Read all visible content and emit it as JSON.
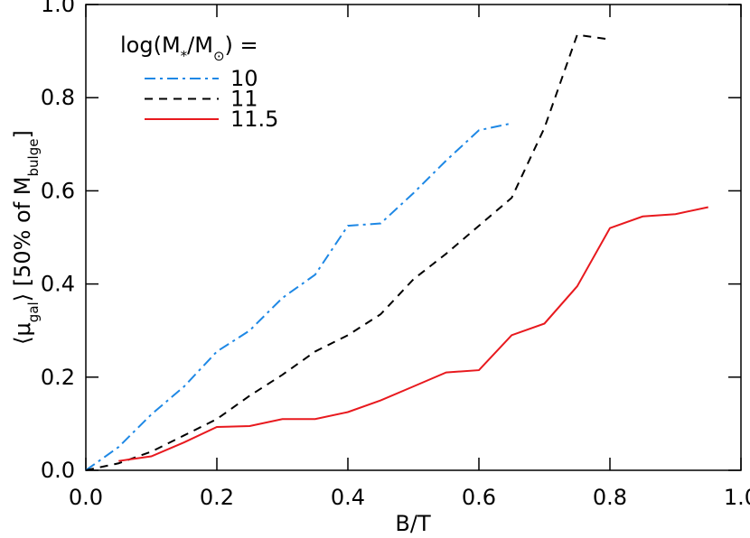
{
  "chart_data": {
    "type": "line",
    "xlabel": "B/T",
    "ylabel": [
      "⟨μ",
      "gal",
      "⟩ [50% of M",
      "bulge",
      "]"
    ],
    "legend_title": [
      "log(M",
      "*",
      "/M",
      "⊙",
      ") ="
    ],
    "legend": "upper left",
    "xlim": [
      0,
      1.0
    ],
    "ylim": [
      0,
      1.0
    ],
    "xticks": [
      {
        "value": 0,
        "label": "0.0"
      },
      {
        "value": 0.2,
        "label": "0.2"
      },
      {
        "value": 0.4,
        "label": "0.4"
      },
      {
        "value": 0.6,
        "label": "0.6"
      },
      {
        "value": 0.8,
        "label": "0.8"
      },
      {
        "value": 1.0,
        "label": "1.0"
      }
    ],
    "yticks": [
      {
        "value": 0,
        "label": "0.0"
      },
      {
        "value": 0.2,
        "label": "0.2"
      },
      {
        "value": 0.4,
        "label": "0.4"
      },
      {
        "value": 0.6,
        "label": "0.6"
      },
      {
        "value": 0.8,
        "label": "0.8"
      },
      {
        "value": 1.0,
        "label": "1.0"
      }
    ],
    "series": [
      {
        "name": "10",
        "color": "#1e88e5",
        "dash": "dashdot",
        "x": [
          0,
          0.05,
          0.1,
          0.15,
          0.2,
          0.25,
          0.3,
          0.35,
          0.4,
          0.45,
          0.5,
          0.55,
          0.6,
          0.65
        ],
        "values": [
          0.0,
          0.05,
          0.12,
          0.18,
          0.255,
          0.3,
          0.37,
          0.42,
          0.525,
          0.53,
          0.595,
          0.665,
          0.73,
          0.745
        ]
      },
      {
        "name": "11",
        "color": "#000000",
        "dash": "dash",
        "x": [
          0,
          0.05,
          0.1,
          0.15,
          0.2,
          0.25,
          0.3,
          0.35,
          0.4,
          0.45,
          0.5,
          0.55,
          0.6,
          0.65,
          0.7,
          0.75,
          0.8
        ],
        "values": [
          0.0,
          0.015,
          0.04,
          0.075,
          0.11,
          0.16,
          0.205,
          0.255,
          0.29,
          0.335,
          0.41,
          0.465,
          0.525,
          0.585,
          0.735,
          0.935,
          0.925
        ]
      },
      {
        "name": "11.5",
        "color": "#e8191e",
        "dash": "solid",
        "x": [
          0.05,
          0.1,
          0.15,
          0.2,
          0.25,
          0.3,
          0.35,
          0.4,
          0.45,
          0.5,
          0.55,
          0.6,
          0.65,
          0.7,
          0.75,
          0.8,
          0.85,
          0.9,
          0.95
        ],
        "values": [
          0.02,
          0.03,
          0.06,
          0.093,
          0.095,
          0.11,
          0.11,
          0.125,
          0.15,
          0.18,
          0.21,
          0.215,
          0.29,
          0.315,
          0.395,
          0.52,
          0.545,
          0.55,
          0.565
        ]
      }
    ]
  }
}
